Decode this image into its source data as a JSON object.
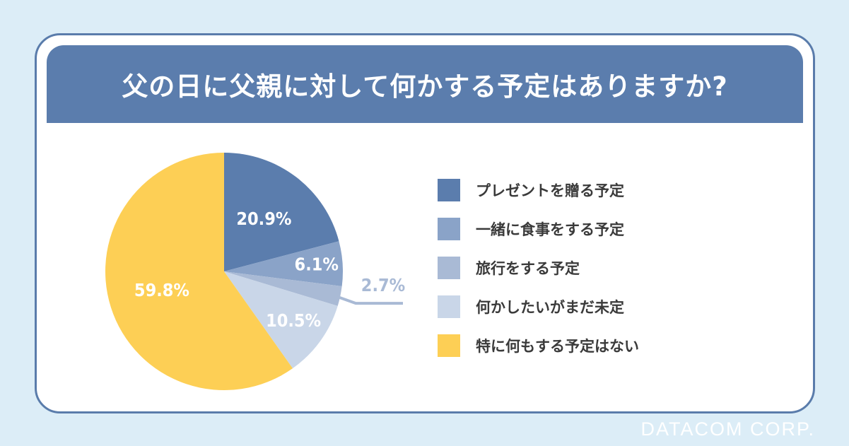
{
  "title": "父の日に父親に対して何かする予定はありますか?",
  "footer": "DATACOM CORP.",
  "chart_data": {
    "type": "pie",
    "title": "父の日に父親に対して何かする予定はありますか?",
    "legend_position": "right",
    "slices": [
      {
        "label": "プレゼントを贈る予定",
        "value": 20.9,
        "value_label": "20.9%",
        "color": "#5b7dad",
        "text_color": "#ffffff"
      },
      {
        "label": "一緒に食事をする予定",
        "value": 6.1,
        "value_label": "6.1%",
        "color": "#8aa3c8",
        "text_color": "#ffffff"
      },
      {
        "label": "旅行をする予定",
        "value": 2.7,
        "value_label": "2.7%",
        "color": "#a9bad5",
        "text_color": "#a9bad5"
      },
      {
        "label": "何かしたいがまだ未定",
        "value": 10.5,
        "value_label": "10.5%",
        "color": "#c9d6e8",
        "text_color": "#ffffff"
      },
      {
        "label": "特に何もする予定はない",
        "value": 59.8,
        "value_label": "59.8%",
        "color": "#fdcf55",
        "text_color": "#ffffff"
      }
    ]
  }
}
